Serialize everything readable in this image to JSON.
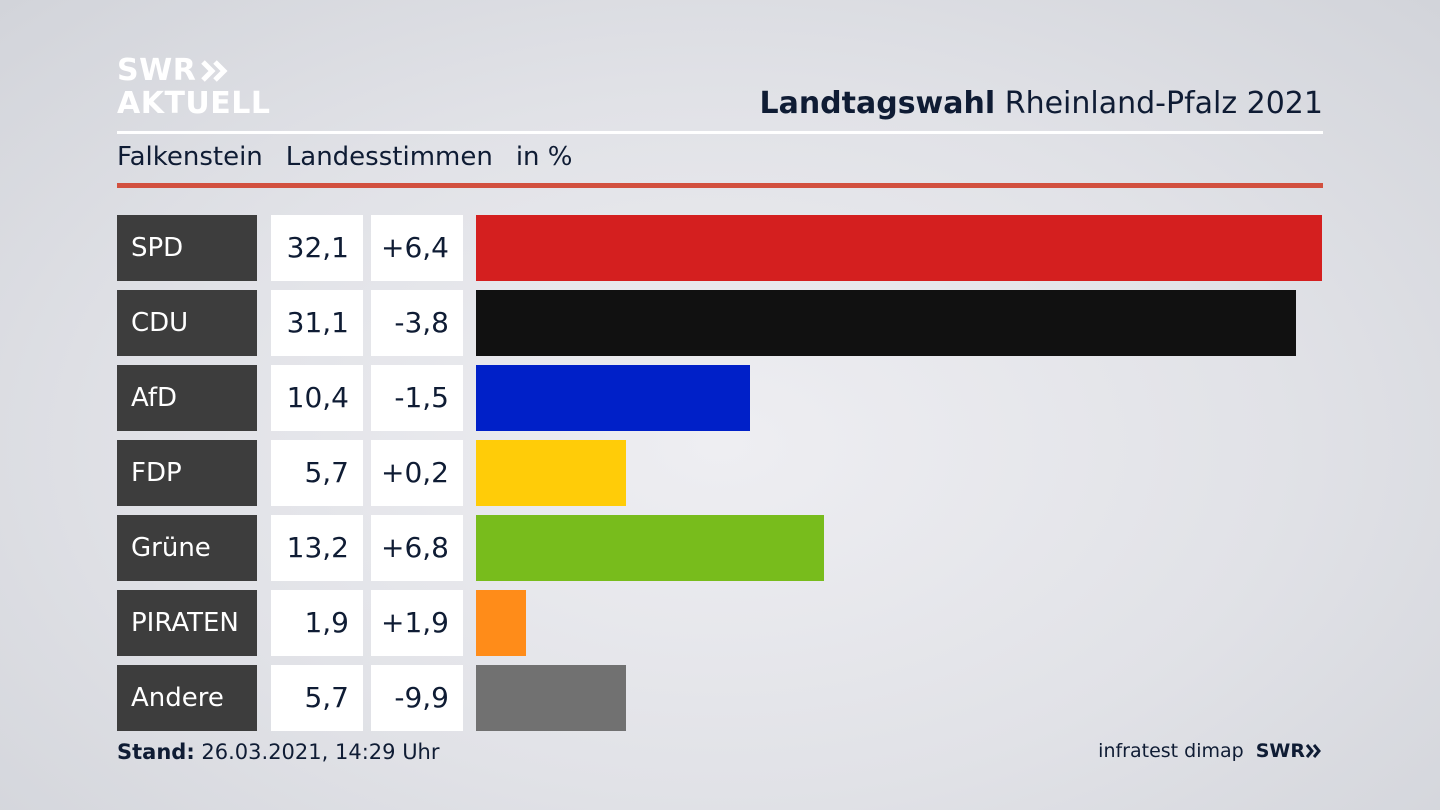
{
  "logo": {
    "line1": "SWR",
    "line2": "AKTUELL"
  },
  "header": {
    "title_bold": "Landtagswahl",
    "title_rest": "Rheinland-Pfalz 2021"
  },
  "subheader": {
    "place": "Falkenstein",
    "vote_type": "Landesstimmen",
    "unit": "in %"
  },
  "footer": {
    "stand_label": "Stand:",
    "stand_value": "26.03.2021, 14:29 Uhr",
    "source": "infratest dimap",
    "brand": "SWR"
  },
  "colors": {
    "accent_red_rule": "#d2503f",
    "party_label_bg": "#3d3d3d"
  },
  "chart_data": {
    "type": "bar",
    "categories": [
      "SPD",
      "CDU",
      "AfD",
      "FDP",
      "Grüne",
      "PIRATEN",
      "Andere"
    ],
    "values": [
      32.1,
      31.1,
      10.4,
      5.7,
      13.2,
      1.9,
      5.7
    ],
    "value_labels": [
      "32,1",
      "31,1",
      "10,4",
      "5,7",
      "13,2",
      "1,9",
      "5,7"
    ],
    "change_labels": [
      "+6,4",
      "-3,8",
      "-1,5",
      "+0,2",
      "+6,8",
      "+1,9",
      "-9,9"
    ],
    "changes": [
      6.4,
      -3.8,
      -1.5,
      0.2,
      6.8,
      1.9,
      -9.9
    ],
    "colors": [
      "#d41f1f",
      "#111111",
      "#0020c8",
      "#ffcc08",
      "#78bc1c",
      "#ff8c19",
      "#717171"
    ],
    "xlim": [
      0,
      32.1
    ]
  }
}
